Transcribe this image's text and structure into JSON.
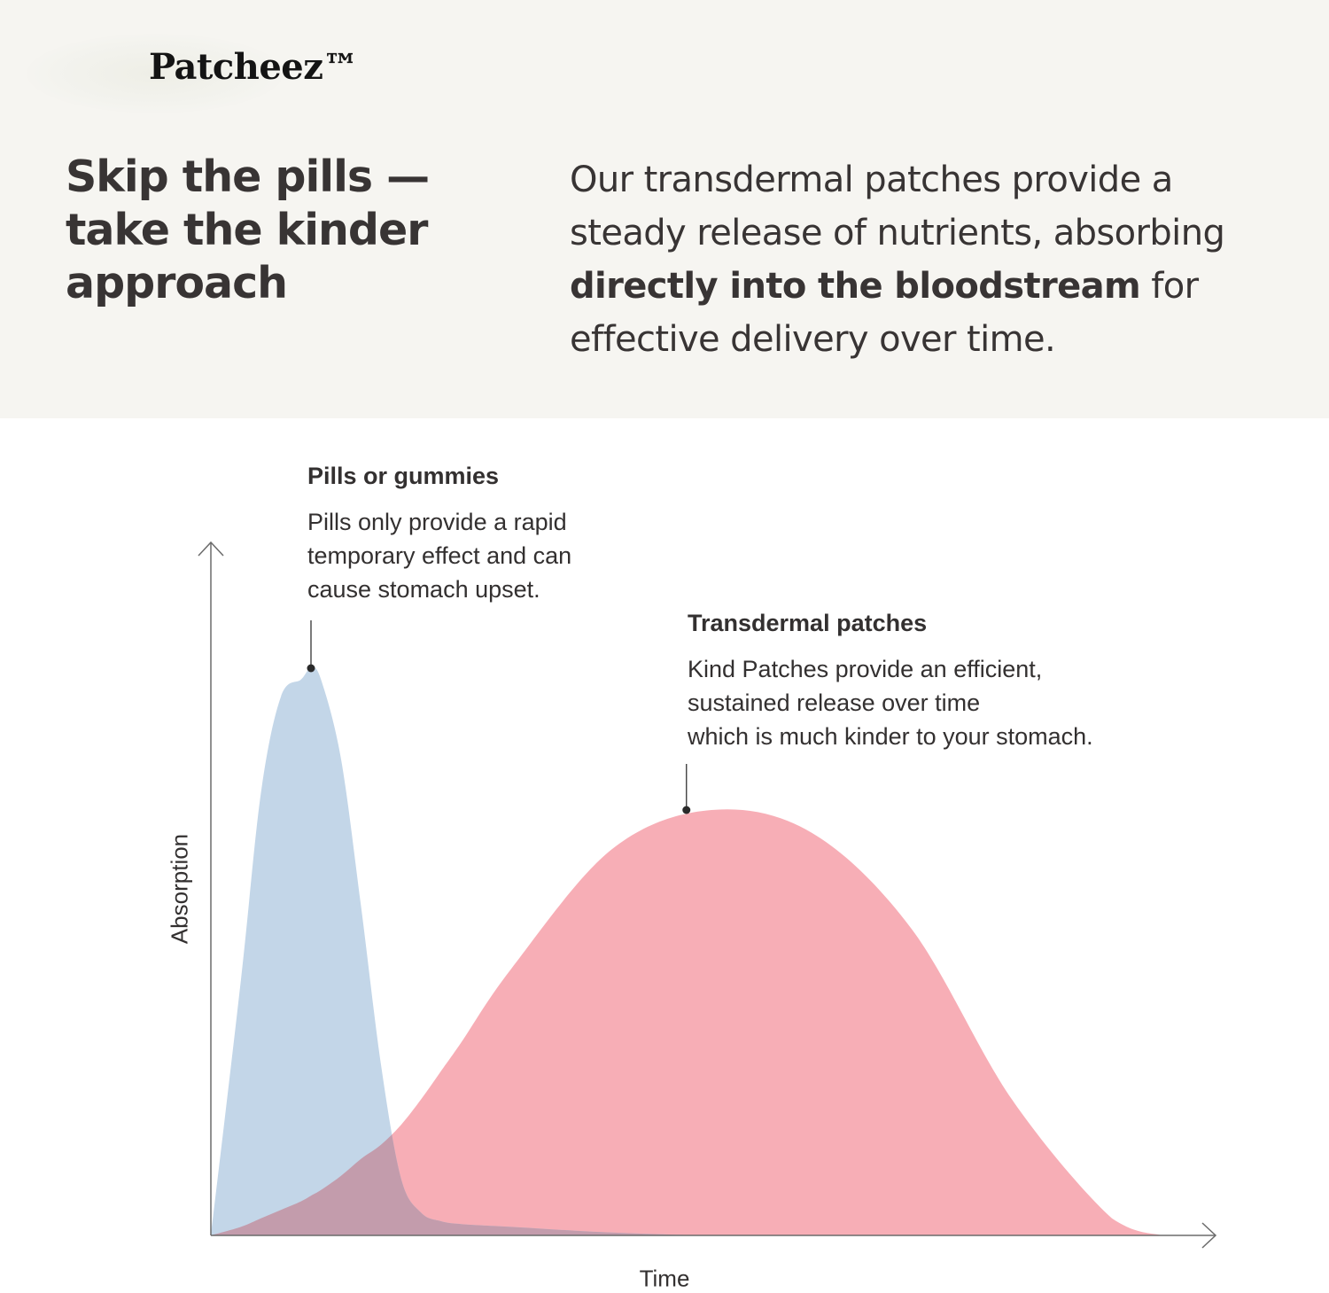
{
  "brand": {
    "logo_text": "Patcheez™"
  },
  "hero": {
    "headline": "Skip the pills — take the kinder approach",
    "description_start": "Our transdermal patches provide a steady release of nutrients, absorbing ",
    "description_bold": "directly into the bloodstream",
    "description_end": " for effective delivery over time."
  },
  "chart_data": {
    "type": "area",
    "title": "",
    "xlabel": "Time",
    "ylabel": "Absorption",
    "xlim": [
      0,
      100
    ],
    "ylim": [
      0,
      100
    ],
    "grid": false,
    "x": [
      0,
      3,
      5,
      7,
      9,
      10,
      11,
      13,
      15,
      17,
      19,
      21,
      23,
      25,
      30,
      40,
      50,
      60,
      70,
      80,
      90,
      95
    ],
    "series": [
      {
        "name": "Pills or gummies",
        "color": "#c3d6e8",
        "values": [
          0,
          45,
          78,
          95,
          98,
          100,
          98,
          84,
          58,
          30,
          10,
          4,
          2.5,
          2,
          1.5,
          0.5,
          0,
          0,
          0,
          0,
          0,
          0
        ]
      },
      {
        "name": "Transdermal patches",
        "color": "#f7aeb6",
        "values": [
          0,
          1.5,
          3,
          4.5,
          6,
          7,
          8,
          10.5,
          13.5,
          16,
          19.5,
          24,
          29,
          34,
          47,
          68,
          75,
          71,
          54,
          24,
          3,
          0
        ]
      }
    ],
    "overlap_color": "#c39cac",
    "annotations": [
      {
        "series": "Pills or gummies",
        "x": 10,
        "y": 100,
        "title": "Pills or gummies",
        "lines": [
          "Pills only provide a rapid",
          "temporary effect and can",
          "cause stomach upset."
        ]
      },
      {
        "series": "Transdermal patches",
        "x": 47.5,
        "y": 75,
        "title": "Transdermal patches",
        "lines": [
          "Kind Patches provide an efficient,",
          "sustained release over time",
          "which is much kinder to your stomach."
        ]
      }
    ]
  }
}
